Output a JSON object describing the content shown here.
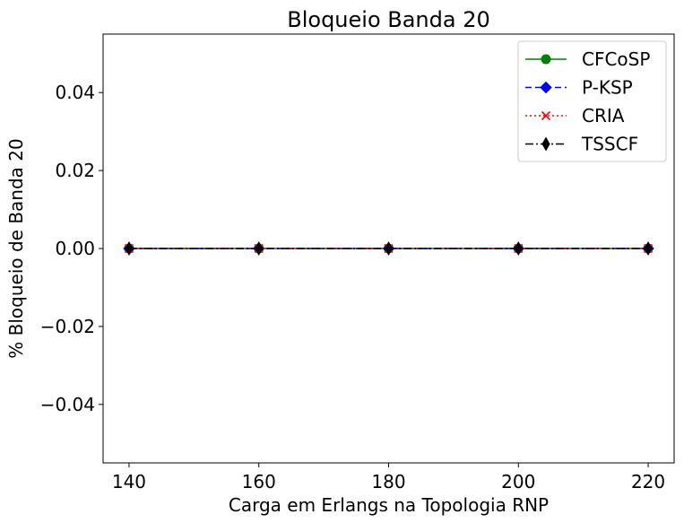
{
  "chart_data": {
    "type": "line",
    "title": "Bloqueio Banda 20",
    "xlabel": "Carga em Erlangs na Topologia RNP",
    "ylabel": "% Bloqueio de Banda 20",
    "x": [
      140,
      160,
      180,
      200,
      220
    ],
    "xticks": [
      "140",
      "160",
      "180",
      "200",
      "220"
    ],
    "yticks": [
      {
        "value": 0.04,
        "label": "0.04"
      },
      {
        "value": 0.02,
        "label": "0.02"
      },
      {
        "value": 0.0,
        "label": "0.00"
      },
      {
        "value": -0.02,
        "label": "−0.02"
      },
      {
        "value": -0.04,
        "label": "−0.04"
      }
    ],
    "xlim": [
      136,
      224
    ],
    "ylim": [
      -0.055,
      0.055
    ],
    "grid": false,
    "legend_position": "top-right",
    "series": [
      {
        "name": "CFCoSP",
        "values": [
          0,
          0,
          0,
          0,
          0
        ],
        "color": "#008000",
        "dash": "solid",
        "marker": "circle"
      },
      {
        "name": "P-KSP",
        "values": [
          0,
          0,
          0,
          0,
          0
        ],
        "color": "#0000ff",
        "dash": "dashed",
        "marker": "diamond"
      },
      {
        "name": "CRIA",
        "values": [
          0,
          0,
          0,
          0,
          0
        ],
        "color": "#ff0000",
        "dash": "dotted",
        "marker": "x"
      },
      {
        "name": "TSSCF",
        "values": [
          0,
          0,
          0,
          0,
          0
        ],
        "color": "#000000",
        "dash": "dashdot",
        "marker": "thin-diamond"
      }
    ]
  }
}
